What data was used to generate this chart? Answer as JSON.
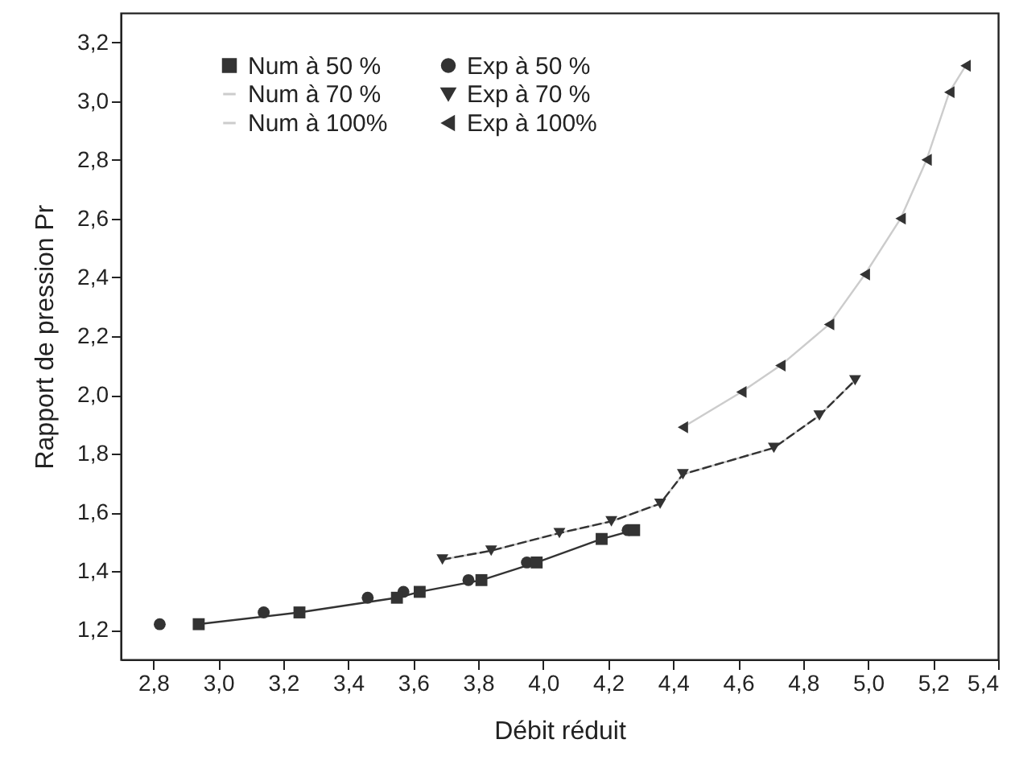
{
  "chart_data": {
    "type": "line",
    "xlabel": "Débit réduit",
    "ylabel": "Rapport de pression Pr",
    "xlim": [
      2.7,
      5.4
    ],
    "ylim": [
      1.1,
      3.3
    ],
    "xticks": [
      {
        "value": 2.8,
        "label": "2,8"
      },
      {
        "value": 3.0,
        "label": "3,0"
      },
      {
        "value": 3.2,
        "label": "3,2"
      },
      {
        "value": 3.4,
        "label": "3,4"
      },
      {
        "value": 3.6,
        "label": "3,6"
      },
      {
        "value": 3.8,
        "label": "3,8"
      },
      {
        "value": 4.0,
        "label": "4,0"
      },
      {
        "value": 4.2,
        "label": "4,2"
      },
      {
        "value": 4.4,
        "label": "4,4"
      },
      {
        "value": 4.6,
        "label": "4,6"
      },
      {
        "value": 4.8,
        "label": "4,8"
      },
      {
        "value": 5.0,
        "label": "5,0"
      },
      {
        "value": 5.2,
        "label": "5,2"
      },
      {
        "value": 5.4,
        "label": "5,4"
      }
    ],
    "yticks": [
      {
        "value": 1.2,
        "label": "1,2"
      },
      {
        "value": 1.4,
        "label": "1,4"
      },
      {
        "value": 1.6,
        "label": "1,6"
      },
      {
        "value": 1.8,
        "label": "1,8"
      },
      {
        "value": 2.0,
        "label": "2,0"
      },
      {
        "value": 2.2,
        "label": "2,2"
      },
      {
        "value": 2.4,
        "label": "2,4"
      },
      {
        "value": 2.6,
        "label": "2,6"
      },
      {
        "value": 2.8,
        "label": "2,8"
      },
      {
        "value": 3.0,
        "label": "3,0"
      },
      {
        "value": 3.2,
        "label": "3,2"
      }
    ],
    "grid": false,
    "legend": "top left",
    "series": [
      {
        "name": "Num à 50 %",
        "type": "line",
        "color": "#333333",
        "marker": "square",
        "line_style": "solid",
        "x": [
          2.94,
          3.25,
          3.55,
          3.62,
          3.81,
          3.98,
          4.18,
          4.28
        ],
        "values": [
          1.22,
          1.26,
          1.31,
          1.33,
          1.37,
          1.43,
          1.51,
          1.54
        ]
      },
      {
        "name": "Exp à 50 %",
        "type": "scatter",
        "color": "#333333",
        "marker": "circle",
        "x": [
          2.82,
          3.14,
          3.46,
          3.57,
          3.77,
          3.95,
          4.26
        ],
        "values": [
          1.22,
          1.26,
          1.31,
          1.33,
          1.37,
          1.43,
          1.54
        ]
      },
      {
        "name": "Num à 70 %",
        "type": "line",
        "color": "#cccccc",
        "marker": "none",
        "line_style": "solid",
        "x": [
          3.69,
          3.84,
          4.05,
          4.21,
          4.36,
          4.43,
          4.71,
          4.85,
          4.96
        ],
        "values": [
          1.44,
          1.47,
          1.53,
          1.57,
          1.63,
          1.73,
          1.82,
          1.93,
          2.05
        ]
      },
      {
        "name": "Exp à 70 %",
        "type": "line",
        "color": "#333333",
        "marker": "triangle-down",
        "line_style": "dashed",
        "x": [
          3.69,
          3.84,
          4.05,
          4.21,
          4.36,
          4.43,
          4.71,
          4.85,
          4.96
        ],
        "values": [
          1.44,
          1.47,
          1.53,
          1.57,
          1.63,
          1.73,
          1.82,
          1.93,
          2.05
        ]
      },
      {
        "name": "Num à 100%",
        "type": "line",
        "color": "#cccccc",
        "marker": "none",
        "line_style": "solid",
        "x": [
          4.43,
          4.61,
          4.73,
          4.88,
          4.99,
          5.1,
          5.18,
          5.25,
          5.3
        ],
        "values": [
          1.89,
          2.01,
          2.1,
          2.24,
          2.41,
          2.6,
          2.8,
          3.03,
          3.12
        ]
      },
      {
        "name": "Exp à 100%",
        "type": "scatter",
        "color": "#333333",
        "marker": "triangle-left",
        "x": [
          4.43,
          4.61,
          4.73,
          4.88,
          4.99,
          5.1,
          5.18,
          5.25,
          5.3
        ],
        "values": [
          1.89,
          2.01,
          2.1,
          2.24,
          2.41,
          2.6,
          2.8,
          3.03,
          3.12
        ]
      }
    ]
  }
}
